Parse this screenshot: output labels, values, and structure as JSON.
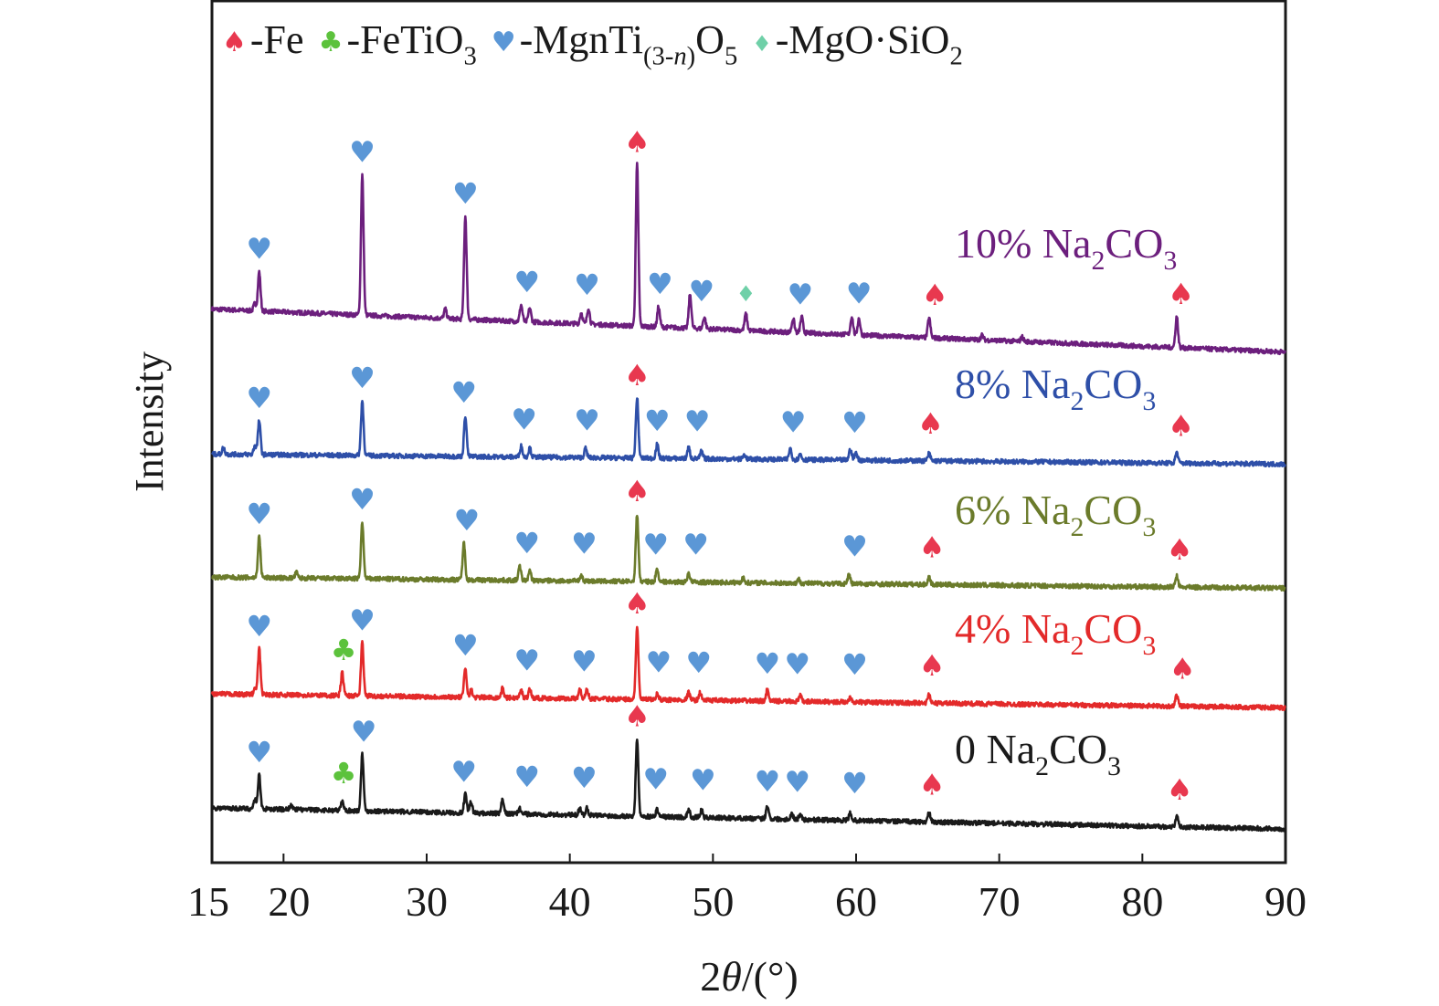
{
  "chart_data": {
    "type": "line",
    "xlabel_parts": [
      {
        "t": "2"
      },
      {
        "t": "θ",
        "i": true
      },
      {
        "t": "/(°)"
      }
    ],
    "ylabel": "Intensity",
    "xlim": [
      15,
      90
    ],
    "ylim": [
      0,
      945
    ],
    "x_ticks": [
      15,
      20,
      30,
      40,
      50,
      60,
      70,
      80,
      90
    ],
    "grid": false,
    "legend_position": "top",
    "legend": [
      {
        "phase": "Fe",
        "glyph": "♠",
        "color": "#e8384f",
        "label": [
          {
            "t": "-Fe"
          }
        ]
      },
      {
        "phase": "FeTiO3",
        "glyph": "♣",
        "color": "#5cc23c",
        "label": [
          {
            "t": "-FeTiO"
          },
          {
            "t": "3",
            "sub": true
          }
        ]
      },
      {
        "phase": "MgnTi(3-n)O5",
        "glyph": "♥",
        "color": "#5b97d6",
        "label": [
          {
            "t": "-MgnTi"
          },
          {
            "t": "(3-",
            "sub": true
          },
          {
            "t": "n",
            "sub": true,
            "i": true
          },
          {
            "t": ")",
            "sub": true
          },
          {
            "t": "O"
          },
          {
            "t": "5",
            "sub": true
          }
        ]
      },
      {
        "phase": "MgO·SiO2",
        "glyph": "♦",
        "color": "#6fd0a8",
        "label": [
          {
            "t": "-MgO·SiO"
          },
          {
            "t": "2",
            "sub": true
          }
        ]
      }
    ],
    "series": [
      {
        "name": "10% Na2CO3",
        "color": "#6c1f7d",
        "label": [
          {
            "t": "10% Na"
          },
          {
            "t": "2",
            "sub": true
          },
          {
            "t": "CO"
          },
          {
            "t": "3",
            "sub": true
          }
        ],
        "baseline": [
          607,
          560
        ],
        "peaks": [
          [
            18.0,
            8
          ],
          [
            18.3,
            43
          ],
          [
            25.5,
            154
          ],
          [
            31.3,
            10
          ],
          [
            32.7,
            113
          ],
          [
            36.6,
            18
          ],
          [
            37.2,
            15
          ],
          [
            40.8,
            12
          ],
          [
            41.3,
            18
          ],
          [
            44.7,
            177
          ],
          [
            46.2,
            22
          ],
          [
            48.4,
            37
          ],
          [
            49.4,
            13
          ],
          [
            52.3,
            18
          ],
          [
            55.6,
            15
          ],
          [
            56.2,
            17
          ],
          [
            59.7,
            20
          ],
          [
            60.2,
            18
          ],
          [
            65.1,
            22
          ],
          [
            68.8,
            5
          ],
          [
            71.6,
            5
          ],
          [
            82.4,
            34
          ]
        ],
        "markers": [
          [
            "MgnTi(3-n)O5",
            18.3
          ],
          [
            "MgnTi(3-n)O5",
            25.5
          ],
          [
            "MgnTi(3-n)O5",
            32.7
          ],
          [
            "MgnTi(3-n)O5",
            37.0
          ],
          [
            "MgnTi(3-n)O5",
            41.2
          ],
          [
            "Fe",
            44.7
          ],
          [
            "MgnTi(3-n)O5",
            46.3
          ],
          [
            "MgnTi(3-n)O5",
            49.2
          ],
          [
            "MgO·SiO2",
            52.3
          ],
          [
            "MgnTi(3-n)O5",
            56.1
          ],
          [
            "MgnTi(3-n)O5",
            60.2
          ],
          [
            "Fe",
            65.5
          ],
          [
            "Fe",
            82.7
          ]
        ]
      },
      {
        "name": "8% Na2CO3",
        "color": "#2e4fa8",
        "label": [
          {
            "t": "8% Na"
          },
          {
            "t": "2",
            "sub": true
          },
          {
            "t": "CO"
          },
          {
            "t": "3",
            "sub": true
          }
        ],
        "baseline": [
          448,
          437
        ],
        "peaks": [
          [
            15.8,
            7
          ],
          [
            18.0,
            10
          ],
          [
            18.3,
            37
          ],
          [
            25.5,
            60
          ],
          [
            32.7,
            45
          ],
          [
            36.6,
            12
          ],
          [
            37.2,
            10
          ],
          [
            41.1,
            10
          ],
          [
            44.7,
            66
          ],
          [
            46.1,
            15
          ],
          [
            48.3,
            12
          ],
          [
            49.2,
            8
          ],
          [
            52.2,
            5
          ],
          [
            55.4,
            12
          ],
          [
            56.1,
            6
          ],
          [
            59.6,
            12
          ],
          [
            60.0,
            8
          ],
          [
            65.1,
            8
          ],
          [
            82.4,
            12
          ]
        ],
        "markers": [
          [
            "MgnTi(3-n)O5",
            18.3
          ],
          [
            "MgnTi(3-n)O5",
            25.5
          ],
          [
            "MgnTi(3-n)O5",
            32.6
          ],
          [
            "MgnTi(3-n)O5",
            36.8
          ],
          [
            "MgnTi(3-n)O5",
            41.2
          ],
          [
            "Fe",
            44.7
          ],
          [
            "MgnTi(3-n)O5",
            46.1
          ],
          [
            "MgnTi(3-n)O5",
            48.9
          ],
          [
            "MgnTi(3-n)O5",
            55.6
          ],
          [
            "MgnTi(3-n)O5",
            59.9
          ],
          [
            "Fe",
            65.2
          ],
          [
            "Fe",
            82.7
          ]
        ]
      },
      {
        "name": "6% Na2CO3",
        "color": "#6b7b2b",
        "label": [
          {
            "t": "6% Na"
          },
          {
            "t": "2",
            "sub": true
          },
          {
            "t": "CO"
          },
          {
            "t": "3",
            "sub": true
          }
        ],
        "baseline": [
          313,
          301
        ],
        "peaks": [
          [
            18.3,
            45
          ],
          [
            20.9,
            6
          ],
          [
            25.5,
            62
          ],
          [
            32.6,
            40
          ],
          [
            36.5,
            15
          ],
          [
            37.2,
            10
          ],
          [
            40.8,
            6
          ],
          [
            44.7,
            74
          ],
          [
            46.1,
            14
          ],
          [
            48.3,
            10
          ],
          [
            52.1,
            5
          ],
          [
            56.0,
            4
          ],
          [
            59.5,
            10
          ],
          [
            65.1,
            8
          ],
          [
            82.4,
            12
          ]
        ],
        "markers": [
          [
            "MgnTi(3-n)O5",
            18.3
          ],
          [
            "MgnTi(3-n)O5",
            25.5
          ],
          [
            "MgnTi(3-n)O5",
            32.8
          ],
          [
            "MgnTi(3-n)O5",
            37.0
          ],
          [
            "MgnTi(3-n)O5",
            41.0
          ],
          [
            "Fe",
            44.7
          ],
          [
            "MgnTi(3-n)O5",
            46.0
          ],
          [
            "MgnTi(3-n)O5",
            48.8
          ],
          [
            "MgnTi(3-n)O5",
            59.9
          ],
          [
            "Fe",
            65.3
          ],
          [
            "Fe",
            82.6
          ]
        ]
      },
      {
        "name": "4% Na2CO3",
        "color": "#e32a2a",
        "label": [
          {
            "t": "4% Na"
          },
          {
            "t": "2",
            "sub": true
          },
          {
            "t": "CO"
          },
          {
            "t": "3",
            "sub": true
          }
        ],
        "baseline": [
          185,
          170
        ],
        "peaks": [
          [
            18.0,
            6
          ],
          [
            18.3,
            50
          ],
          [
            24.1,
            25
          ],
          [
            25.5,
            58
          ],
          [
            32.7,
            32
          ],
          [
            33.1,
            8
          ],
          [
            35.3,
            10
          ],
          [
            36.6,
            8
          ],
          [
            37.2,
            10
          ],
          [
            40.7,
            10
          ],
          [
            41.2,
            10
          ],
          [
            44.7,
            80
          ],
          [
            46.1,
            6
          ],
          [
            48.3,
            8
          ],
          [
            49.1,
            8
          ],
          [
            53.8,
            12
          ],
          [
            56.1,
            6
          ],
          [
            59.6,
            6
          ],
          [
            65.1,
            10
          ],
          [
            82.4,
            12
          ]
        ],
        "markers": [
          [
            "MgnTi(3-n)O5",
            18.3
          ],
          [
            "FeTiO3",
            24.2
          ],
          [
            "MgnTi(3-n)O5",
            25.5
          ],
          [
            "MgnTi(3-n)O5",
            32.7
          ],
          [
            "MgnTi(3-n)O5",
            37.0
          ],
          [
            "MgnTi(3-n)O5",
            41.0
          ],
          [
            "Fe",
            44.7
          ],
          [
            "MgnTi(3-n)O5",
            46.2
          ],
          [
            "MgnTi(3-n)O5",
            49.0
          ],
          [
            "MgnTi(3-n)O5",
            53.8
          ],
          [
            "MgnTi(3-n)O5",
            55.9
          ],
          [
            "MgnTi(3-n)O5",
            59.9
          ],
          [
            "Fe",
            65.3
          ],
          [
            "Fe",
            82.8
          ]
        ]
      },
      {
        "name": "0 Na2CO3",
        "color": "#1a1a1a",
        "label": [
          {
            "t": "0 Na"
          },
          {
            "t": "2",
            "sub": true
          },
          {
            "t": "CO"
          },
          {
            "t": "3",
            "sub": true
          }
        ],
        "baseline": [
          60,
          37
        ],
        "peaks": [
          [
            18.0,
            10
          ],
          [
            18.3,
            37
          ],
          [
            20.5,
            5
          ],
          [
            24.1,
            10
          ],
          [
            25.5,
            62
          ],
          [
            32.7,
            20
          ],
          [
            33.1,
            12
          ],
          [
            35.3,
            15
          ],
          [
            36.5,
            6
          ],
          [
            40.7,
            8
          ],
          [
            41.2,
            8
          ],
          [
            44.7,
            85
          ],
          [
            46.1,
            8
          ],
          [
            48.3,
            8
          ],
          [
            49.2,
            8
          ],
          [
            53.8,
            15
          ],
          [
            55.5,
            6
          ],
          [
            56.1,
            6
          ],
          [
            59.6,
            8
          ],
          [
            65.1,
            10
          ],
          [
            82.4,
            12
          ]
        ],
        "markers": [
          [
            "MgnTi(3-n)O5",
            18.3
          ],
          [
            "FeTiO3",
            24.2
          ],
          [
            "MgnTi(3-n)O5",
            25.6
          ],
          [
            "MgnTi(3-n)O5",
            32.6
          ],
          [
            "MgnTi(3-n)O5",
            37.0
          ],
          [
            "MgnTi(3-n)O5",
            41.0
          ],
          [
            "Fe",
            44.7
          ],
          [
            "MgnTi(3-n)O5",
            46.0
          ],
          [
            "MgnTi(3-n)O5",
            49.3
          ],
          [
            "MgnTi(3-n)O5",
            53.8
          ],
          [
            "MgnTi(3-n)O5",
            55.9
          ],
          [
            "MgnTi(3-n)O5",
            59.9
          ],
          [
            "Fe",
            65.3
          ],
          [
            "Fe",
            82.6
          ]
        ]
      }
    ]
  }
}
